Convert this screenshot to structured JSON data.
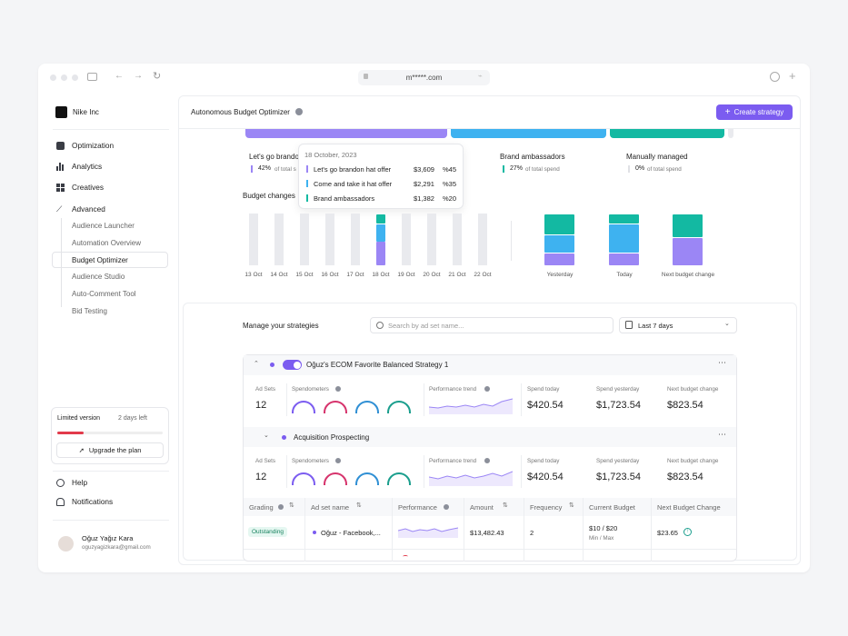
{
  "browser": {
    "url": "m*****.com"
  },
  "org": {
    "name": "Nike Inc"
  },
  "nav": {
    "optimization": "Optimization",
    "analytics": "Analytics",
    "creatives": "Creatives",
    "advanced": "Advanced",
    "sub": [
      "Audience Launcher",
      "Automation Overview",
      "Budget Optimizer",
      "Audience Studio",
      "Auto-Comment Tool",
      "Bid Testing"
    ],
    "help": "Help",
    "notifications": "Notifications"
  },
  "plan": {
    "label": "Limited version",
    "days": "2 days left",
    "progress": 0.25,
    "upgrade": "Upgrade the plan"
  },
  "user": {
    "name": "Oğuz Yağız Kara",
    "email": "oguzyagizkara@gmail.com"
  },
  "header": {
    "title": "Autonomous Budget Optimizer",
    "create": "Create strategy"
  },
  "colors": {
    "purple": "#9b86f5",
    "blue": "#3eb2f0",
    "teal": "#13b9a2",
    "grey": "#e9eaee",
    "accent": "#7b5cf0"
  },
  "summary": [
    {
      "name": "Let's go brandon",
      "pct": "42%",
      "of": "of total s"
    },
    {
      "name": "Brand ambassadors",
      "pct": "27%",
      "of": "of total spend"
    },
    {
      "name": "Manually managed",
      "pct": "0%",
      "of": "of total spend"
    }
  ],
  "tooltip": {
    "date": "18 October, 2023",
    "rows": [
      {
        "name": "Let's go brandon hat offer",
        "amount": "$3,609",
        "pct": "%45"
      },
      {
        "name": "Come and take it hat offer",
        "amount": "$2,291",
        "pct": "%35"
      },
      {
        "name": "Brand ambassadors",
        "amount": "$1,382",
        "pct": "%20"
      }
    ]
  },
  "chart_data": {
    "type": "bar",
    "title": "Budget changes",
    "categories": [
      "13 Oct",
      "14 Oct",
      "15 Oct",
      "16 Oct",
      "17 Oct",
      "18 Oct",
      "19 Oct",
      "20 Oct",
      "21 Oct",
      "22 Oct"
    ],
    "series": [
      {
        "name": "Let's go brandon hat offer",
        "values": [
          0,
          0,
          0,
          0,
          0,
          45,
          0,
          0,
          0,
          0
        ]
      },
      {
        "name": "Come and take it hat offer",
        "values": [
          0,
          0,
          0,
          0,
          0,
          35,
          0,
          0,
          0,
          0
        ]
      },
      {
        "name": "Brand ambassadors",
        "values": [
          0,
          0,
          0,
          0,
          0,
          20,
          0,
          0,
          0,
          0
        ]
      }
    ],
    "right": {
      "categories": [
        "Yesterday",
        "Today",
        "Next budget change"
      ],
      "series": [
        {
          "name": "Let's go brandon hat offer",
          "values": [
            25,
            25,
            55
          ]
        },
        {
          "name": "Come and take it hat offer",
          "values": [
            35,
            55,
            0
          ]
        },
        {
          "name": "Brand ambassadors",
          "values": [
            40,
            20,
            45
          ]
        }
      ]
    }
  },
  "strategies": {
    "title": "Manage your strategies",
    "search_placeholder": "Search by ad set name...",
    "range": "Last 7 days",
    "groups": [
      {
        "name": "Oğuz's ECOM Favorite Balanced Strategy 1",
        "adsets": "12",
        "spend_today": "$420.54",
        "spend_yesterday": "$1,723.54",
        "next_change": "$823.54"
      },
      {
        "name": "Acquisition Prospecting",
        "adsets": "12",
        "spend_today": "$420.54",
        "spend_yesterday": "$1,723.54",
        "next_change": "$823.54"
      }
    ],
    "labels": {
      "adsets": "Ad Sets",
      "speedometers": "Spendometers",
      "trend": "Performance trend",
      "today": "Spend today",
      "yesterday": "Spend yesterday",
      "next": "Next budget change"
    },
    "columns": [
      "Grading",
      "Ad set name",
      "Performance",
      "Amount",
      "Frequency",
      "Current Budget",
      "Next Budget Change"
    ],
    "row": {
      "grade": "Outstanding",
      "name": "Oğuz - Facebook,...",
      "amount": "$13,482.43",
      "frequency": "2",
      "budget": "$10 / $20",
      "budget_sub": "Min / Max",
      "next": "$23.65"
    }
  }
}
